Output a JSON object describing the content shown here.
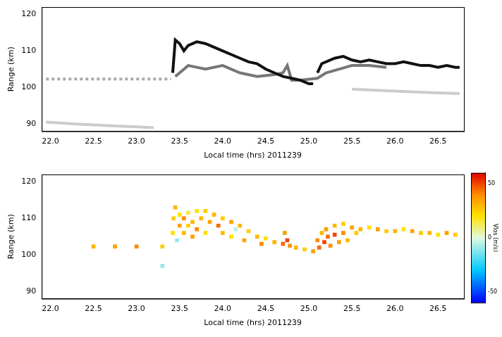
{
  "chart_data": [
    {
      "type": "line",
      "x_label": "Local time (hrs) 2011239",
      "y_label": "Range (km)",
      "xlim": [
        21.9,
        26.8
      ],
      "ylim": [
        88,
        122
      ],
      "xticks": [
        22,
        22.5,
        23,
        23.5,
        24,
        24.5,
        25,
        25.5,
        26,
        26.5
      ],
      "yticks": [
        90,
        100,
        110,
        120
      ],
      "grid": false,
      "series": [
        {
          "color": "#111111",
          "line_style": "solid",
          "x": [
            23.42,
            23.45,
            23.5,
            23.55,
            23.6,
            23.7,
            23.8,
            23.9,
            24.0,
            24.1,
            24.2,
            24.3,
            24.4,
            24.5,
            24.6,
            24.7,
            24.8,
            24.9,
            25.0,
            25.05,
            25.08,
            25.1,
            25.15,
            25.3,
            25.4,
            25.5,
            25.6,
            25.7,
            25.8,
            25.9,
            26.0,
            26.1,
            26.2,
            26.3,
            26.4,
            26.5,
            26.6,
            26.7,
            26.75
          ],
          "values": [
            104,
            113,
            112,
            110,
            111.5,
            112.5,
            112,
            111,
            110,
            109,
            108,
            107,
            106.5,
            105,
            104,
            103,
            102.5,
            102,
            101,
            101,
            null,
            104,
            106.5,
            108,
            108.5,
            107.5,
            107,
            107.5,
            107,
            106.5,
            106.5,
            107,
            106.5,
            106,
            106,
            105.5,
            106,
            105.5,
            105.5
          ]
        },
        {
          "color": "#777777",
          "line_style": "solid",
          "x": [
            23.45,
            23.6,
            23.8,
            24.0,
            24.2,
            24.4,
            24.6,
            24.7,
            24.75,
            24.8,
            24.9,
            25.1,
            25.2,
            25.35,
            25.5,
            25.7,
            25.9
          ],
          "values": [
            103,
            106,
            105,
            106,
            104,
            103,
            103.5,
            104,
            106,
            102,
            102,
            102.5,
            104,
            105,
            106,
            106,
            105.5
          ]
        },
        {
          "color": "#aaaaaa",
          "line_style": "dashed",
          "x": [
            21.95,
            23.4
          ],
          "values": [
            102.3,
            102.3
          ]
        },
        {
          "color": "#cccccc",
          "line_style": "solid",
          "x": [
            21.95,
            22.3,
            22.7,
            23.0,
            23.2
          ],
          "values": [
            90.5,
            90,
            89.5,
            89.2,
            89
          ]
        },
        {
          "color": "#cccccc",
          "line_style": "solid",
          "x": [
            25.5,
            26.0,
            26.5,
            26.75
          ],
          "values": [
            99.5,
            99,
            98.5,
            98.3
          ]
        }
      ]
    },
    {
      "type": "scatter",
      "x_label": "Local time (hrs) 2011239",
      "y_label": "Range (km)",
      "xlim": [
        21.9,
        26.8
      ],
      "ylim": [
        88,
        122
      ],
      "xticks": [
        22,
        22.5,
        23,
        23.5,
        24,
        24.5,
        25,
        25.5,
        26,
        26.5
      ],
      "yticks": [
        90,
        100,
        110,
        120
      ],
      "grid": false,
      "points": {
        "x": [
          22.5,
          22.75,
          23.0,
          23.3,
          23.42,
          23.43,
          23.45,
          23.47,
          23.5,
          23.5,
          23.55,
          23.55,
          23.6,
          23.6,
          23.65,
          23.65,
          23.7,
          23.7,
          23.75,
          23.8,
          23.8,
          23.85,
          23.9,
          23.95,
          24.0,
          24.0,
          24.1,
          24.1,
          24.15,
          24.2,
          24.25,
          24.3,
          24.4,
          24.45,
          24.5,
          24.6,
          24.7,
          24.72,
          24.75,
          24.78,
          24.85,
          24.95,
          25.05,
          25.1,
          25.12,
          25.15,
          25.18,
          25.2,
          25.22,
          25.25,
          25.3,
          25.3,
          25.35,
          25.4,
          25.4,
          25.45,
          25.5,
          25.55,
          25.6,
          25.7,
          25.8,
          25.9,
          26.0,
          26.1,
          26.2,
          26.3,
          26.4,
          26.5,
          26.6,
          26.7,
          23.3
        ],
        "y": [
          102.3,
          102.3,
          102.3,
          102.3,
          106,
          110,
          113,
          104,
          108,
          111,
          106,
          110,
          108,
          111.5,
          105,
          109,
          112,
          107,
          110,
          112,
          106,
          109,
          111,
          108,
          110,
          106,
          109,
          105,
          107,
          108,
          104,
          106.5,
          105,
          103,
          104.5,
          103.5,
          103,
          106,
          104,
          102.5,
          102,
          101.5,
          101,
          104,
          102,
          106,
          103.5,
          107,
          105,
          102.5,
          108,
          105.5,
          103.5,
          108.5,
          106,
          104,
          107.5,
          106,
          107,
          107.5,
          107,
          106.5,
          106.5,
          107,
          106.5,
          106,
          106,
          105.5,
          106,
          105.5,
          97
        ],
        "vlos": [
          30,
          35,
          40,
          25,
          20,
          25,
          30,
          -10,
          35,
          20,
          30,
          40,
          25,
          15,
          35,
          30,
          20,
          40,
          30,
          25,
          20,
          35,
          30,
          45,
          25,
          30,
          35,
          20,
          -5,
          30,
          35,
          25,
          30,
          40,
          20,
          30,
          45,
          35,
          50,
          40,
          30,
          25,
          35,
          40,
          45,
          30,
          50,
          35,
          45,
          40,
          30,
          50,
          35,
          25,
          40,
          30,
          35,
          25,
          30,
          20,
          35,
          25,
          30,
          20,
          35,
          25,
          30,
          20,
          35,
          25,
          -10
        ]
      },
      "colorbar": {
        "label": "Vlos (m/s)",
        "range": [
          -60,
          60
        ],
        "ticks": [
          -50,
          0,
          50
        ]
      }
    }
  ]
}
